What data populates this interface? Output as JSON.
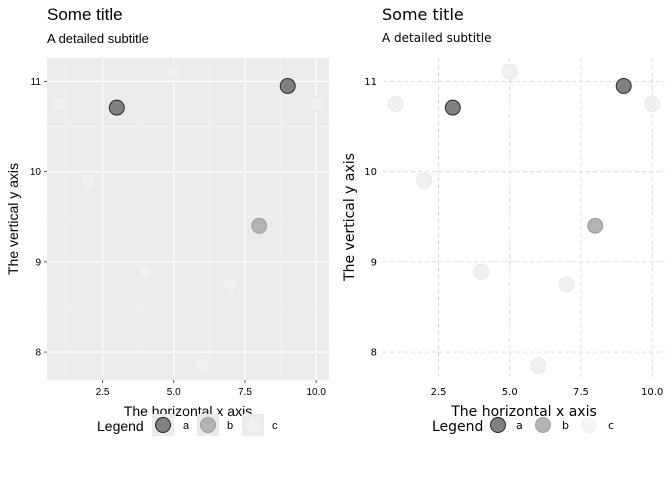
{
  "colors": {
    "panel_bg": "#ebebeb",
    "grid_major_dark": "#ffffff",
    "grid_light": "#d9d9d9",
    "point_a": "#808080",
    "point_b": "#b3b3b3",
    "point_c": "#f0f0f0",
    "point_stroke": "#1a1a1a"
  },
  "chart_data": [
    {
      "type": "scatter",
      "theme": "grey",
      "title": "Some title",
      "subtitle": "A detailed subtitle",
      "xlabel": "The horizontal x axis",
      "ylabel": "The vertical y axis",
      "xlim": [
        0.55,
        10.45
      ],
      "ylim": [
        7.69,
        11.26
      ],
      "xticks": [
        2.5,
        5.0,
        7.5,
        10.0
      ],
      "xtick_labels": [
        "2.5",
        "5.0",
        "7.5",
        "10.0"
      ],
      "yticks": [
        8,
        9,
        10,
        11
      ],
      "ytick_labels": [
        "8",
        "9",
        "10",
        "11"
      ],
      "grid": true,
      "legend_position": "bottom",
      "legend_title": "Legend",
      "series": [
        {
          "name": "a",
          "x": [
            3,
            9
          ],
          "y": [
            10.71,
            10.95
          ]
        },
        {
          "name": "b",
          "x": [
            8
          ],
          "y": [
            9.4
          ]
        },
        {
          "name": "c",
          "x": [
            1,
            2,
            4,
            5,
            6,
            7,
            10
          ],
          "y": [
            10.75,
            9.9,
            8.89,
            11.11,
            7.85,
            8.75,
            10.75
          ]
        }
      ]
    },
    {
      "type": "scatter",
      "theme": "light",
      "title": "Some title",
      "subtitle": "A detailed subtitle",
      "xlabel": "The horizontal x axis",
      "ylabel": "The vertical y axis",
      "xlim": [
        0.55,
        10.45
      ],
      "ylim": [
        7.69,
        11.26
      ],
      "xticks": [
        2.5,
        5.0,
        7.5,
        10.0
      ],
      "xtick_labels": [
        "2.5",
        "5.0",
        "7.5",
        "10.0"
      ],
      "yticks": [
        8,
        9,
        10,
        11
      ],
      "ytick_labels": [
        "8",
        "9",
        "10",
        "11"
      ],
      "grid": true,
      "legend_position": "bottom",
      "legend_title": "Legend",
      "series": [
        {
          "name": "a",
          "x": [
            3,
            9
          ],
          "y": [
            10.71,
            10.95
          ]
        },
        {
          "name": "b",
          "x": [
            8
          ],
          "y": [
            9.4
          ]
        },
        {
          "name": "c",
          "x": [
            1,
            2,
            4,
            5,
            6,
            7,
            10
          ],
          "y": [
            10.75,
            9.9,
            8.89,
            11.11,
            7.85,
            8.75,
            10.75
          ]
        }
      ]
    }
  ]
}
